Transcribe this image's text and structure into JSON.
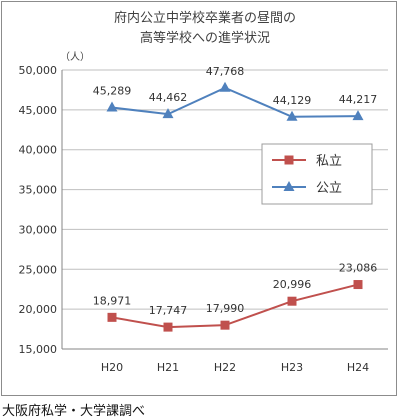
{
  "chart_data": {
    "type": "line",
    "title_lines": [
      "府内公立中学校卒業者の昼間の",
      "高等学校への進学状況"
    ],
    "unit_label": "（人）",
    "categories": [
      "H20",
      "H21",
      "H22",
      "H23",
      "H24"
    ],
    "ylim": [
      15000,
      50000
    ],
    "yticks": [
      15000,
      20000,
      25000,
      30000,
      35000,
      40000,
      45000,
      50000
    ],
    "ytick_labels": [
      "15,000",
      "20,000",
      "25,000",
      "30,000",
      "35,000",
      "40,000",
      "45,000",
      "50,000"
    ],
    "grid": true,
    "legend_position": "right",
    "series": [
      {
        "name": "私立",
        "marker": "square",
        "color": "#c0504d",
        "values": [
          18971,
          17747,
          17990,
          20996,
          23086
        ],
        "value_labels": [
          "18,971",
          "17,747",
          "17,990",
          "20,996",
          "23,086"
        ]
      },
      {
        "name": "公立",
        "marker": "triangle",
        "color": "#4f81bd",
        "values": [
          45289,
          44462,
          47768,
          44129,
          44217
        ],
        "value_labels": [
          "45,289",
          "44,462",
          "47,768",
          "44,129",
          "44,217"
        ]
      }
    ]
  },
  "source_note": "大阪府私学・大学課調べ"
}
